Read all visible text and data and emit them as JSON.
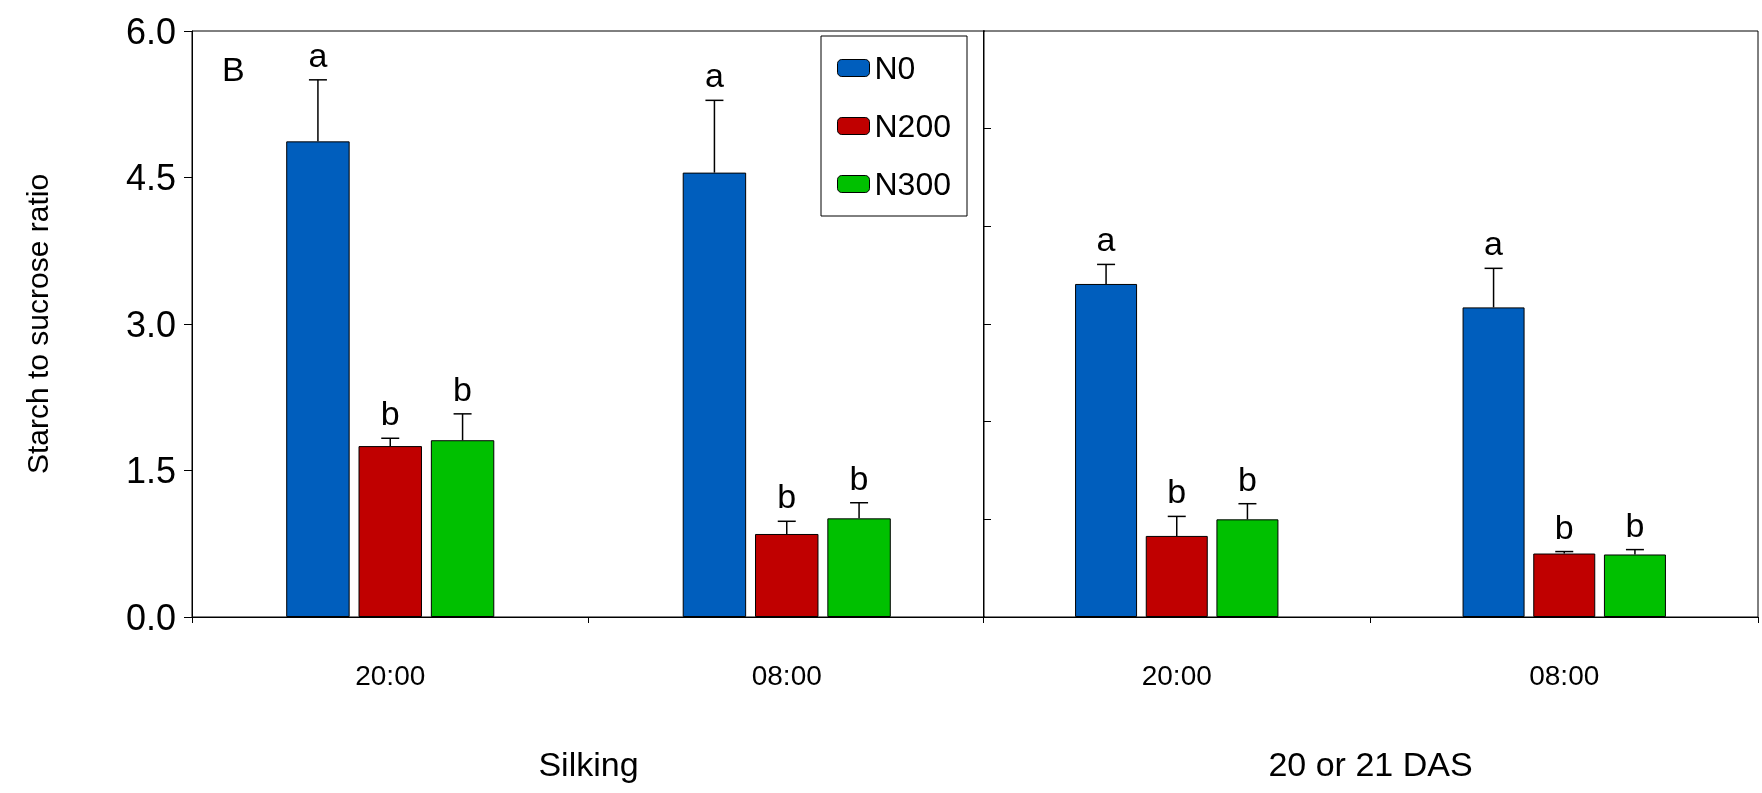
{
  "chart_data": [
    {
      "type": "bar",
      "categories": [
        "20:00",
        "08:00"
      ],
      "xlabel": "Silking",
      "ylabel": "Starch to sucrose ratio",
      "annotations": [
        "B"
      ],
      "ylim": [
        0,
        6
      ],
      "yticks": [
        {
          "value": 0,
          "label": "0.0"
        },
        {
          "value": 1.5,
          "label": "1.5"
        },
        {
          "value": 3,
          "label": "3.0"
        },
        {
          "value": 4.5,
          "label": "4.5"
        },
        {
          "value": 6,
          "label": "6.0"
        }
      ],
      "legend": "top right",
      "series": [
        {
          "name": "N0",
          "color": "#005ebd",
          "values": [
            4.87,
            4.55
          ],
          "errors": [
            0.63,
            0.74
          ],
          "value_labels": [
            "a",
            "a"
          ]
        },
        {
          "name": "N200",
          "color": "#c00000",
          "values": [
            1.75,
            0.85
          ],
          "errors": [
            0.08,
            0.13
          ],
          "value_labels": [
            "b",
            "b"
          ]
        },
        {
          "name": "N300",
          "color": "#00c000",
          "values": [
            1.81,
            1.01
          ],
          "errors": [
            0.27,
            0.16
          ],
          "value_labels": [
            "b",
            "b"
          ]
        }
      ]
    },
    {
      "type": "bar",
      "categories": [
        "20:00",
        "08:00"
      ],
      "xlabel": "20 or 21 DAS",
      "ylim": [
        0,
        6
      ],
      "yticks": [
        {
          "value": 1,
          "label": null
        },
        {
          "value": 2,
          "label": null
        },
        {
          "value": 3,
          "label": null
        },
        {
          "value": 4,
          "label": null
        },
        {
          "value": 5,
          "label": null
        }
      ],
      "tick_labels": "x",
      "series": [
        {
          "color": "#005ebd",
          "values": [
            3.41,
            3.17
          ],
          "errors": [
            0.2,
            0.4
          ],
          "value_labels": [
            "a",
            "a"
          ]
        },
        {
          "color": "#c00000",
          "values": [
            0.83,
            0.65
          ],
          "errors": [
            0.2,
            0.02
          ],
          "value_labels": [
            "b",
            "b"
          ]
        },
        {
          "color": "#00c000",
          "values": [
            1.0,
            0.64
          ],
          "errors": [
            0.16,
            0.05
          ],
          "value_labels": [
            "b",
            "b"
          ]
        }
      ]
    }
  ]
}
